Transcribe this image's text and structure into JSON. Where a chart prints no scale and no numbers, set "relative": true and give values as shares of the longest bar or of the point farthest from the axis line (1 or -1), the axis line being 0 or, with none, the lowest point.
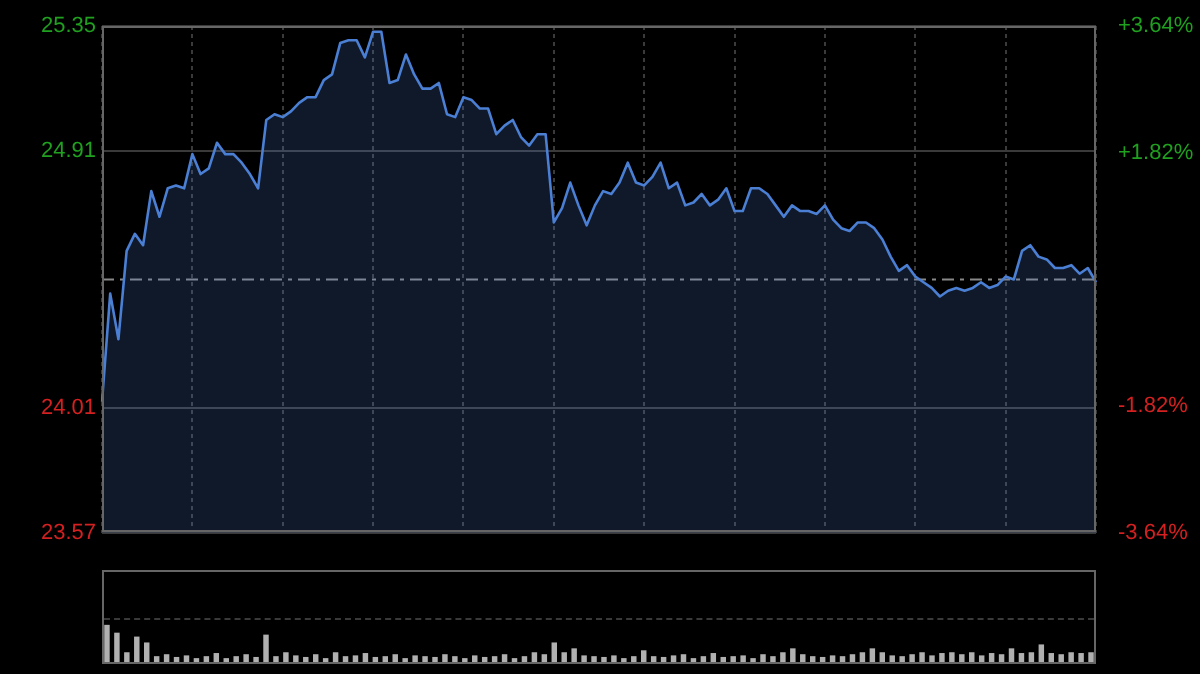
{
  "chart_data": [
    {
      "type": "area",
      "categories": [
        null,
        null,
        null,
        null,
        null,
        null,
        null,
        null,
        null,
        null,
        null,
        null,
        null,
        null,
        null,
        null,
        null,
        null,
        null,
        null,
        null,
        null,
        null,
        null,
        null,
        null,
        null,
        null,
        null,
        null,
        null,
        null,
        null,
        null,
        null,
        null,
        null,
        null,
        null,
        null,
        null,
        null,
        null,
        null,
        null,
        null,
        null,
        null,
        null,
        null,
        null,
        null,
        null,
        null,
        null,
        null,
        null,
        null,
        null,
        null,
        null,
        null,
        null,
        null,
        null,
        null,
        null,
        null,
        null,
        null,
        null,
        null,
        null,
        null,
        null,
        null,
        null,
        null,
        null,
        null,
        null,
        null,
        null,
        null,
        null,
        null,
        null,
        null,
        null,
        null,
        null,
        null,
        null,
        null,
        null,
        null,
        null,
        null,
        null,
        null,
        null,
        null,
        null,
        null,
        null,
        null,
        null,
        null,
        null,
        null,
        null,
        null,
        null,
        null,
        null,
        null,
        null,
        null,
        null,
        null,
        null,
        null
      ],
      "series": [
        {
          "color": "#4a7fd4",
          "values": [
            24.03,
            24.41,
            24.25,
            24.56,
            24.62,
            24.58,
            24.77,
            24.68,
            24.78,
            24.79,
            24.78,
            24.9,
            24.83,
            24.85,
            24.94,
            24.9,
            24.9,
            24.87,
            24.83,
            24.78,
            25.02,
            25.04,
            25.03,
            25.05,
            25.08,
            25.1,
            25.1,
            25.16,
            25.18,
            25.29,
            25.3,
            25.3,
            25.24,
            25.33,
            25.33,
            25.15,
            25.16,
            25.25,
            25.18,
            25.13,
            25.13,
            25.15,
            25.04,
            25.03,
            25.1,
            25.09,
            25.06,
            25.06,
            24.97,
            25.0,
            25.02,
            24.96,
            24.93,
            24.97,
            24.97,
            24.66,
            24.71,
            24.8,
            24.72,
            24.65,
            24.72,
            24.77,
            24.76,
            24.8,
            24.87,
            24.8,
            24.79,
            24.82,
            24.87,
            24.78,
            24.8,
            24.72,
            24.73,
            24.76,
            24.72,
            24.74,
            24.78,
            24.7,
            24.7,
            24.78,
            24.78,
            24.76,
            24.72,
            24.68,
            24.72,
            24.7,
            24.7,
            24.69,
            24.72,
            24.67,
            24.64,
            24.63,
            24.66,
            24.66,
            24.64,
            24.6,
            24.54,
            24.49,
            24.51,
            24.47,
            24.45,
            24.43,
            24.4,
            24.42,
            24.43,
            24.42,
            24.43,
            24.45,
            24.43,
            24.44,
            24.47,
            24.46,
            24.56,
            24.58,
            24.54,
            24.53,
            24.5,
            24.5,
            24.51,
            24.48,
            24.5,
            24.45
          ]
        }
      ],
      "ylim": [
        23.57,
        25.35
      ],
      "yticks": [
        23.57,
        24.01,
        24.91,
        25.35
      ],
      "y2lim": [
        -3.64,
        3.64
      ],
      "y2ticks": [
        {
          "value": -3.64,
          "label": "-3.64%"
        },
        {
          "value": -1.82,
          "label": "-1.82%"
        },
        {
          "value": 1.82,
          "label": "+1.82%"
        },
        {
          "value": 3.64,
          "label": "+3.64%"
        }
      ],
      "ref_lines": [
        {
          "axis": "y",
          "value": 24.46,
          "line_style": "dashed",
          "color": "#888888"
        }
      ],
      "tick_labels": "y",
      "grid": true,
      "legend": false
    },
    {
      "type": "bar",
      "relative": true,
      "color": "#b0b0b0",
      "categories": [
        null,
        null,
        null,
        null,
        null,
        null,
        null,
        null,
        null,
        null,
        null,
        null,
        null,
        null,
        null,
        null,
        null,
        null,
        null,
        null,
        null,
        null,
        null,
        null,
        null,
        null,
        null,
        null,
        null,
        null,
        null,
        null,
        null,
        null,
        null,
        null,
        null,
        null,
        null,
        null,
        null,
        null,
        null,
        null,
        null,
        null,
        null,
        null,
        null,
        null,
        null,
        null,
        null,
        null,
        null,
        null,
        null,
        null,
        null,
        null,
        null,
        null,
        null,
        null,
        null,
        null,
        null,
        null,
        null,
        null,
        null,
        null,
        null,
        null,
        null,
        null,
        null,
        null,
        null,
        null,
        null,
        null,
        null,
        null,
        null,
        null,
        null,
        null,
        null,
        null,
        null,
        null,
        null,
        null,
        null,
        null,
        null,
        null,
        null,
        null
      ],
      "values": [
        1.0,
        0.8,
        0.3,
        0.7,
        0.55,
        0.2,
        0.25,
        0.18,
        0.22,
        0.15,
        0.2,
        0.28,
        0.15,
        0.2,
        0.25,
        0.18,
        0.75,
        0.2,
        0.3,
        0.22,
        0.18,
        0.25,
        0.15,
        0.3,
        0.2,
        0.22,
        0.28,
        0.18,
        0.2,
        0.25,
        0.15,
        0.22,
        0.2,
        0.18,
        0.25,
        0.2,
        0.15,
        0.22,
        0.18,
        0.2,
        0.25,
        0.15,
        0.2,
        0.3,
        0.25,
        0.55,
        0.3,
        0.4,
        0.22,
        0.2,
        0.18,
        0.22,
        0.15,
        0.2,
        0.35,
        0.2,
        0.18,
        0.22,
        0.25,
        0.15,
        0.2,
        0.28,
        0.18,
        0.2,
        0.22,
        0.15,
        0.25,
        0.2,
        0.3,
        0.4,
        0.25,
        0.2,
        0.18,
        0.22,
        0.2,
        0.25,
        0.3,
        0.4,
        0.3,
        0.22,
        0.2,
        0.25,
        0.3,
        0.22,
        0.28,
        0.3,
        0.25,
        0.3,
        0.22,
        0.28,
        0.25,
        0.4,
        0.28,
        0.3,
        0.5,
        0.28,
        0.25,
        0.3,
        0.28,
        0.3
      ],
      "tick_labels": false,
      "legend": false
    }
  ]
}
